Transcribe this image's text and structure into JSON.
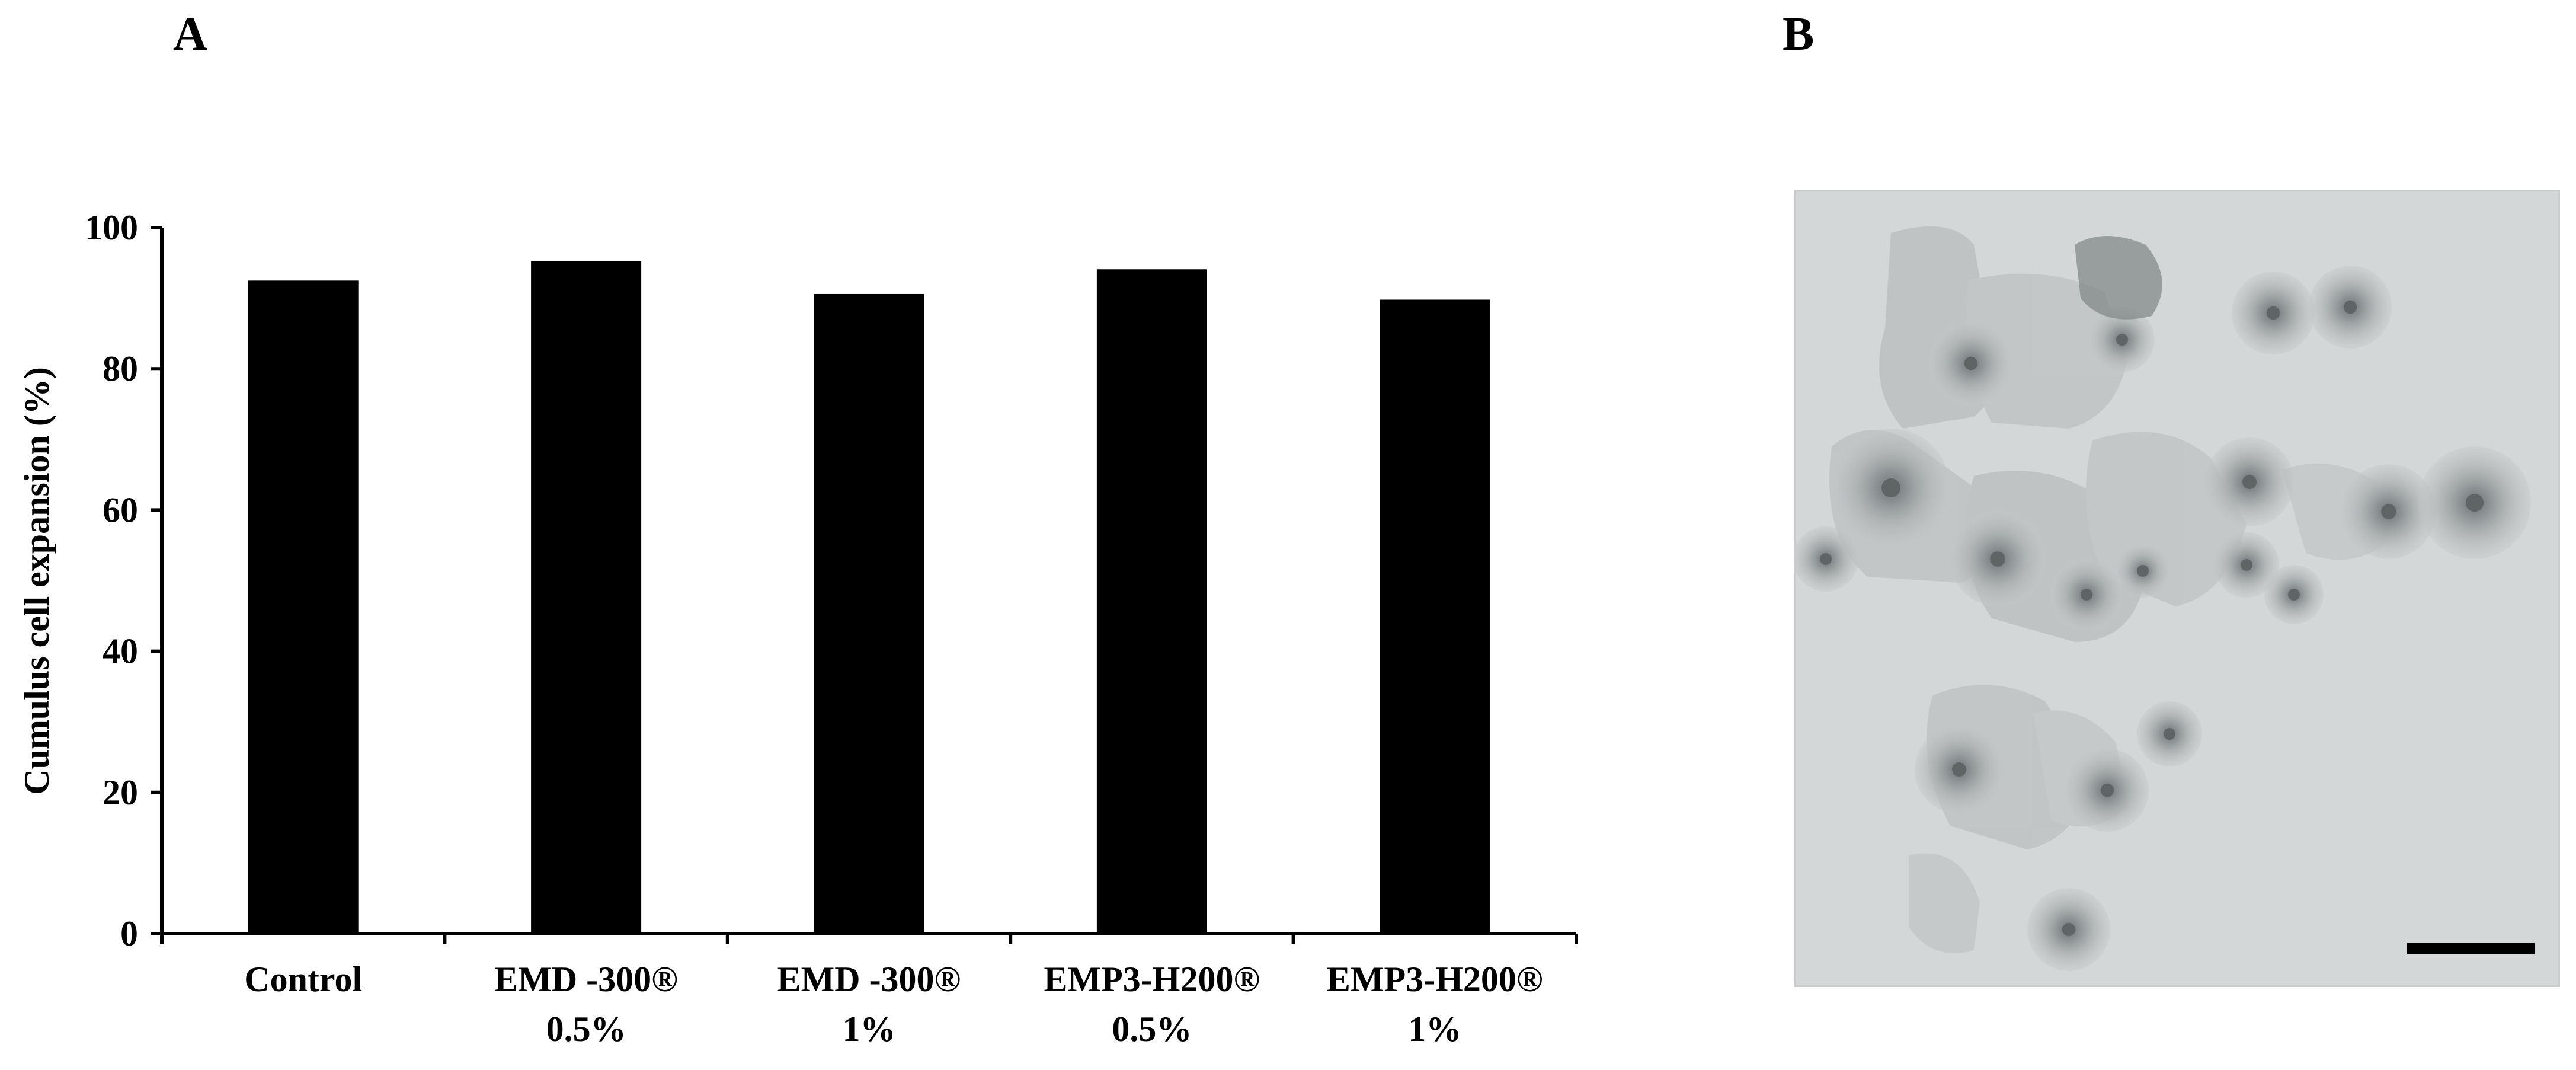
{
  "panels": {
    "a_letter": "A",
    "b_letter": "B"
  },
  "chart_data": {
    "type": "bar",
    "categories": [
      [
        "Control"
      ],
      [
        "EMD -300®",
        "0.5%"
      ],
      [
        "EMD -300®",
        "1%"
      ],
      [
        "EMP3-H200®",
        "0.5%"
      ],
      [
        "EMP3-H200®",
        "1%"
      ]
    ],
    "values": [
      92.5,
      95.3,
      90.6,
      94.1,
      89.8
    ],
    "title": "",
    "xlabel": "",
    "ylabel": "Cumulus cell expansion (%)",
    "ylim": [
      0,
      100
    ],
    "yticks": [
      0,
      20,
      40,
      60,
      80,
      100
    ],
    "bar_color": "#000000",
    "grid": false,
    "legend": "none"
  },
  "micrograph": {
    "background": "#d5d8d8",
    "cell_color": "#9a9fa0",
    "scale_bar_color": "#000000"
  }
}
